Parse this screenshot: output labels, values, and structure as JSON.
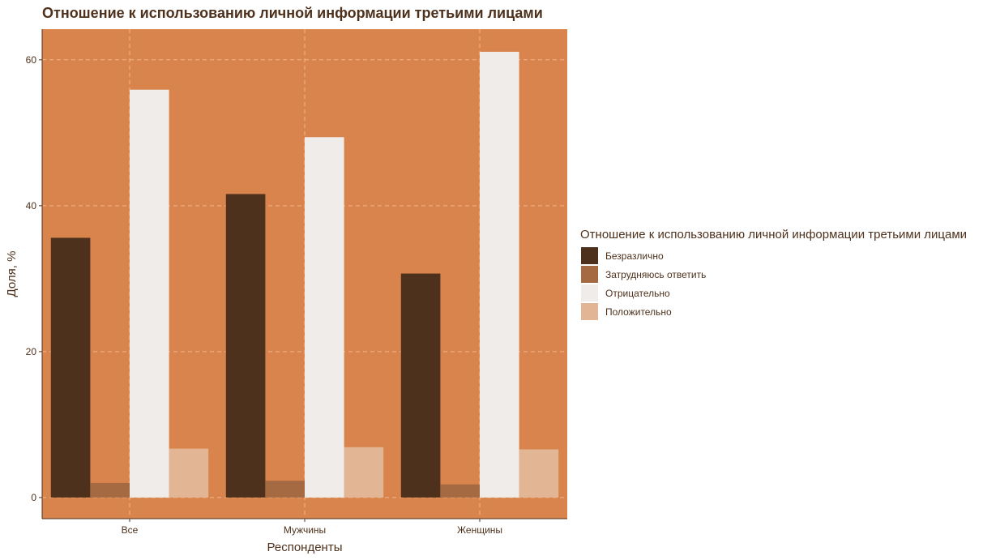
{
  "chart_data": {
    "type": "bar",
    "title": "Отношение к использованию личной информации третьими лицами",
    "xlabel": "Респонденты",
    "ylabel": "Доля, %",
    "categories": [
      "Все",
      "Мужчины",
      "Женщины"
    ],
    "ylim": [
      -2.9,
      64.2
    ],
    "yticks": [
      0,
      20,
      40,
      60
    ],
    "grid": true,
    "legend": {
      "title": "Отношение к использованию личной информации третьими лицами",
      "placement": "right"
    },
    "series": [
      {
        "name": "Безразлично",
        "color": "#4e311c",
        "values": [
          35.6,
          41.6,
          30.7
        ]
      },
      {
        "name": "Затрудняюсь ответить",
        "color": "#a66a43",
        "values": [
          2.0,
          2.3,
          1.8
        ]
      },
      {
        "name": "Отрицательно",
        "color": "#f0ecea",
        "values": [
          55.9,
          49.4,
          61.1
        ]
      },
      {
        "name": "Положительно",
        "color": "#e2b594",
        "values": [
          6.7,
          6.9,
          6.6
        ]
      }
    ],
    "panel_bg": "#d9844c",
    "grid_color": "#eeb88f"
  }
}
